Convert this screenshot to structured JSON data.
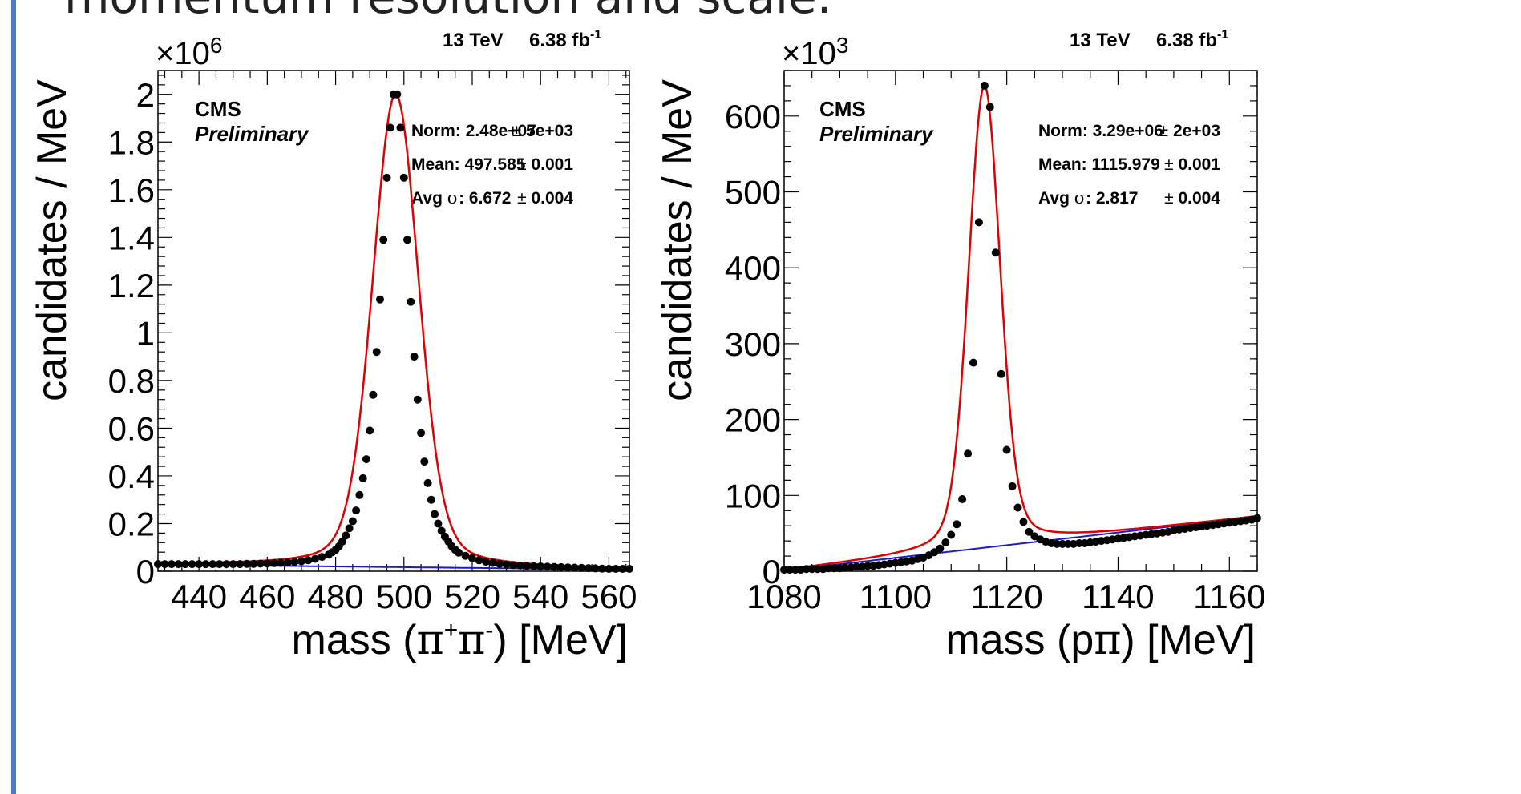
{
  "slide": {
    "title": "momentum resolution and scale."
  },
  "colors": {
    "accent_bar": "#4a7bc8",
    "fit_total": "#e00000",
    "fit_background": "#1a1acc",
    "data_points": "#000000"
  },
  "chart_data": [
    {
      "type": "scatter",
      "name": "kshort",
      "experiment": "CMS",
      "status": "Preliminary",
      "energy_label": "13 TeV",
      "lumi_label": "6.38 fb",
      "lumi_sup": "-1",
      "scale_exponent": "6",
      "xlabel_parts": [
        "mass (",
        "π",
        "+",
        "π",
        "-",
        ") [MeV]"
      ],
      "ylabel": "candidates / MeV",
      "xlim": [
        428,
        566
      ],
      "ylim": [
        0,
        2.1
      ],
      "xticks": [
        440,
        460,
        480,
        500,
        520,
        540,
        560
      ],
      "xtick_labels": [
        "440",
        "460",
        "480",
        "500",
        "520",
        "540",
        "560"
      ],
      "yticks": [
        0,
        0.2,
        0.4,
        0.6,
        0.8,
        1,
        1.2,
        1.4,
        1.6,
        1.8,
        2
      ],
      "ytick_labels": [
        "0",
        "0.2",
        "0.4",
        "0.6",
        "0.8",
        "1",
        "1.2",
        "1.4",
        "1.6",
        "1.8",
        "2"
      ],
      "fit_labels": [
        {
          "prefix": "Norm: ",
          "value": "2.48e+07",
          "err": "5e+03"
        },
        {
          "prefix": "Mean: ",
          "value": "497.585",
          "err": "0.001"
        },
        {
          "prefix": "Avg ",
          "sigma": "σ",
          "value": ": 6.672",
          "err": "0.004"
        }
      ],
      "fit": {
        "norm": 24800000.0,
        "mean": 497.585,
        "sigma": 6.672,
        "bkg_at_xmin": 0.028,
        "bkg_at_xmax": 0.007
      },
      "points": [
        [
          428,
          0.03
        ],
        [
          430,
          0.03
        ],
        [
          432,
          0.03
        ],
        [
          434,
          0.03
        ],
        [
          436,
          0.03
        ],
        [
          438,
          0.03
        ],
        [
          440,
          0.03
        ],
        [
          442,
          0.03
        ],
        [
          444,
          0.03
        ],
        [
          446,
          0.03
        ],
        [
          448,
          0.03
        ],
        [
          450,
          0.03
        ],
        [
          452,
          0.03
        ],
        [
          454,
          0.031
        ],
        [
          456,
          0.031
        ],
        [
          458,
          0.032
        ],
        [
          460,
          0.033
        ],
        [
          462,
          0.034
        ],
        [
          464,
          0.035
        ],
        [
          466,
          0.037
        ],
        [
          468,
          0.039
        ],
        [
          470,
          0.042
        ],
        [
          472,
          0.046
        ],
        [
          474,
          0.052
        ],
        [
          476,
          0.06
        ],
        [
          478,
          0.07
        ],
        [
          479,
          0.08
        ],
        [
          480,
          0.09
        ],
        [
          481,
          0.105
        ],
        [
          482,
          0.125
        ],
        [
          483,
          0.15
        ],
        [
          484,
          0.18
        ],
        [
          485,
          0.21
        ],
        [
          486,
          0.255
        ],
        [
          487,
          0.32
        ],
        [
          488,
          0.39
        ],
        [
          489,
          0.47
        ],
        [
          490,
          0.59
        ],
        [
          491,
          0.74
        ],
        [
          492,
          0.92
        ],
        [
          493,
          1.14
        ],
        [
          494,
          1.39
        ],
        [
          495,
          1.65
        ],
        [
          496,
          1.86
        ],
        [
          497,
          2.0
        ],
        [
          498,
          2.0
        ],
        [
          499,
          1.86
        ],
        [
          500,
          1.65
        ],
        [
          501,
          1.39
        ],
        [
          502,
          1.13
        ],
        [
          503,
          0.9
        ],
        [
          504,
          0.72
        ],
        [
          505,
          0.58
        ],
        [
          506,
          0.46
        ],
        [
          507,
          0.37
        ],
        [
          508,
          0.3
        ],
        [
          509,
          0.24
        ],
        [
          510,
          0.2
        ],
        [
          511,
          0.17
        ],
        [
          512,
          0.145
        ],
        [
          513,
          0.125
        ],
        [
          514,
          0.105
        ],
        [
          515,
          0.09
        ],
        [
          516,
          0.078
        ],
        [
          518,
          0.065
        ],
        [
          520,
          0.055
        ],
        [
          522,
          0.046
        ],
        [
          524,
          0.04
        ],
        [
          526,
          0.035
        ],
        [
          528,
          0.031
        ],
        [
          530,
          0.028
        ],
        [
          532,
          0.026
        ],
        [
          534,
          0.024
        ],
        [
          536,
          0.022
        ],
        [
          538,
          0.021
        ],
        [
          540,
          0.02
        ],
        [
          542,
          0.019
        ],
        [
          544,
          0.018
        ],
        [
          546,
          0.017
        ],
        [
          548,
          0.016
        ],
        [
          550,
          0.015
        ],
        [
          552,
          0.014
        ],
        [
          554,
          0.013
        ],
        [
          556,
          0.012
        ],
        [
          558,
          0.011
        ],
        [
          560,
          0.01
        ],
        [
          562,
          0.01
        ],
        [
          564,
          0.01
        ],
        [
          566,
          0.01
        ]
      ]
    },
    {
      "type": "scatter",
      "name": "lambda",
      "experiment": "CMS",
      "status": "Preliminary",
      "energy_label": "13 TeV",
      "lumi_label": "6.38 fb",
      "lumi_sup": "-1",
      "scale_exponent": "3",
      "xlabel_parts": [
        "mass (p",
        "π",
        "",
        "",
        "",
        ") [MeV]"
      ],
      "ylabel": "candidates / MeV",
      "xlim": [
        1080,
        1165
      ],
      "ylim": [
        0,
        660
      ],
      "xticks": [
        1080,
        1100,
        1120,
        1140,
        1160
      ],
      "xtick_labels": [
        "1080",
        "1100",
        "1120",
        "1140",
        "1160"
      ],
      "yticks": [
        0,
        100,
        200,
        300,
        400,
        500,
        600
      ],
      "ytick_labels": [
        "0",
        "100",
        "200",
        "300",
        "400",
        "500",
        "600"
      ],
      "fit_labels": [
        {
          "prefix": "Norm: ",
          "value": "3.29e+06",
          "err": "2e+03"
        },
        {
          "prefix": "Mean: ",
          "value": "1115.979",
          "err": "0.001"
        },
        {
          "prefix": "Avg ",
          "sigma": "σ",
          "value": ": 2.817",
          "err": "0.004"
        }
      ],
      "fit": {
        "norm": 3290000.0,
        "mean": 1115.979,
        "sigma": 2.817,
        "bkg_at_xmin": 1.0,
        "bkg_at_xmax": 72
      },
      "points": [
        [
          1080,
          2
        ],
        [
          1081,
          2
        ],
        [
          1082,
          2
        ],
        [
          1083,
          2
        ],
        [
          1084,
          3
        ],
        [
          1085,
          3
        ],
        [
          1086,
          3
        ],
        [
          1087,
          3
        ],
        [
          1088,
          4
        ],
        [
          1089,
          4
        ],
        [
          1090,
          4
        ],
        [
          1091,
          5
        ],
        [
          1092,
          5
        ],
        [
          1093,
          6
        ],
        [
          1094,
          6
        ],
        [
          1095,
          7
        ],
        [
          1096,
          7
        ],
        [
          1097,
          8
        ],
        [
          1098,
          9
        ],
        [
          1099,
          10
        ],
        [
          1100,
          11
        ],
        [
          1101,
          12
        ],
        [
          1102,
          13
        ],
        [
          1103,
          14
        ],
        [
          1104,
          16
        ],
        [
          1105,
          18
        ],
        [
          1106,
          21
        ],
        [
          1107,
          25
        ],
        [
          1108,
          30
        ],
        [
          1109,
          38
        ],
        [
          1110,
          48
        ],
        [
          1111,
          62
        ],
        [
          1112,
          95
        ],
        [
          1113,
          155
        ],
        [
          1114,
          275
        ],
        [
          1115,
          460
        ],
        [
          1116,
          640
        ],
        [
          1117,
          612
        ],
        [
          1118,
          420
        ],
        [
          1119,
          260
        ],
        [
          1120,
          160
        ],
        [
          1121,
          112
        ],
        [
          1122,
          84
        ],
        [
          1123,
          65
        ],
        [
          1124,
          52
        ],
        [
          1125,
          46
        ],
        [
          1126,
          42
        ],
        [
          1127,
          39
        ],
        [
          1128,
          37
        ],
        [
          1129,
          36
        ],
        [
          1130,
          36
        ],
        [
          1131,
          36
        ],
        [
          1132,
          36
        ],
        [
          1133,
          37
        ],
        [
          1134,
          37
        ],
        [
          1135,
          38
        ],
        [
          1136,
          39
        ],
        [
          1137,
          40
        ],
        [
          1138,
          41
        ],
        [
          1139,
          42
        ],
        [
          1140,
          43
        ],
        [
          1141,
          44
        ],
        [
          1142,
          45
        ],
        [
          1143,
          46
        ],
        [
          1144,
          47
        ],
        [
          1145,
          48
        ],
        [
          1146,
          49
        ],
        [
          1147,
          50
        ],
        [
          1148,
          51
        ],
        [
          1149,
          52
        ],
        [
          1150,
          54
        ],
        [
          1151,
          55
        ],
        [
          1152,
          56
        ],
        [
          1153,
          57
        ],
        [
          1154,
          58
        ],
        [
          1155,
          59
        ],
        [
          1156,
          60
        ],
        [
          1157,
          61
        ],
        [
          1158,
          62
        ],
        [
          1159,
          63
        ],
        [
          1160,
          64
        ],
        [
          1161,
          65
        ],
        [
          1162,
          66
        ],
        [
          1163,
          67
        ],
        [
          1164,
          68
        ],
        [
          1165,
          70
        ]
      ]
    }
  ]
}
